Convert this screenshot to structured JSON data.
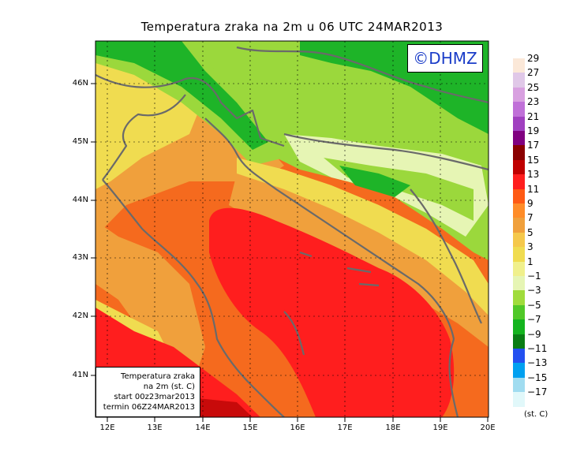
{
  "title": "Temperatura zraka na 2m u 06 UTC 24MAR2013",
  "logo": "©DHMZ",
  "info_box": {
    "line1": "Temperatura zraka",
    "line2": "na 2m (st. C)",
    "line3": "start 00z23mar2013",
    "line4": "termin 06Z24MAR2013"
  },
  "lat_labels": [
    "46N",
    "45N",
    "44N",
    "43N",
    "42N",
    "41N"
  ],
  "lon_labels": [
    "12E",
    "13E",
    "14E",
    "15E",
    "16E",
    "17E",
    "18E",
    "19E",
    "20E"
  ],
  "legend": {
    "unit": "(st. C)",
    "labels": [
      "29",
      "27",
      "25",
      "23",
      "21",
      "19",
      "17",
      "15",
      "13",
      "11",
      "9",
      "7",
      "5",
      "3",
      "1",
      "−1",
      "−3",
      "−5",
      "−7",
      "−9",
      "−11",
      "−13",
      "−15",
      "−17"
    ],
    "colors": [
      "#fbe8d8",
      "#e0c8e8",
      "#d8a0e0",
      "#c070d8",
      "#a040c0",
      "#800080",
      "#8a0000",
      "#c00000",
      "#ff1e1e",
      "#ff5a14",
      "#ff8c28",
      "#f0a03c",
      "#f5c84b",
      "#f0dc50",
      "#f0f08c",
      "#e6f5b4",
      "#a0dc3c",
      "#50c828",
      "#14b41e",
      "#0a7d14",
      "#2350f0",
      "#00a0f0",
      "#a0dcf0",
      "#e1f8fa"
    ]
  },
  "map": {
    "background_note": "",
    "colors": {
      "green": "#1eb428",
      "lightgreen": "#9bd83c",
      "pale": "#e6f5b4",
      "yellow": "#f0e05a",
      "orange": "#f5a03c",
      "darkorange": "#f56a1e",
      "red": "#ff1e1e",
      "darkred": "#c80a0a",
      "land_line": "#6a6a6a",
      "grid": "#000000"
    }
  }
}
